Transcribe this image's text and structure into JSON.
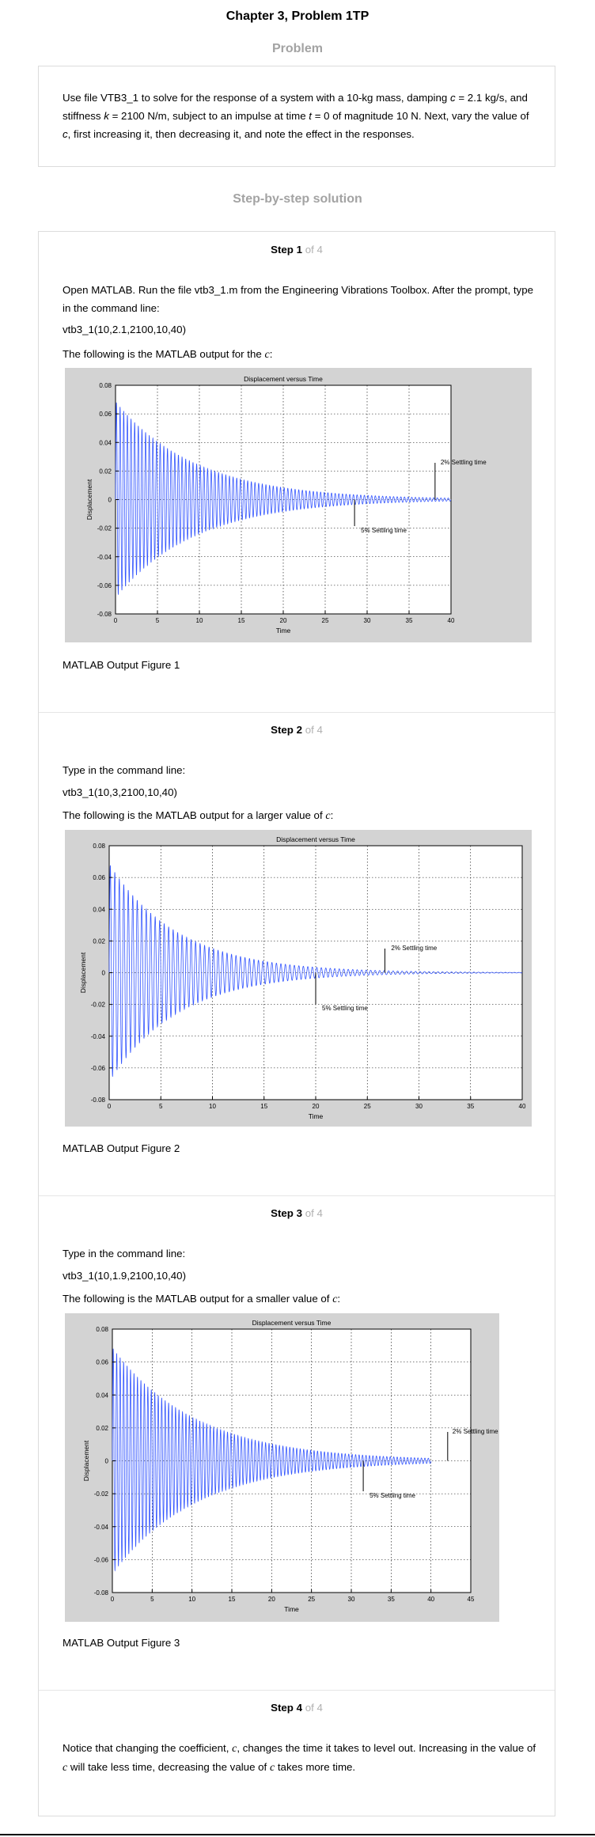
{
  "header": {
    "title": "Chapter 3, Problem 1TP",
    "problem_label": "Problem",
    "solution_label": "Step-by-step solution"
  },
  "problem": {
    "text_parts": [
      "Use file VTB3_1 to solve for the response of a system with a 10-kg mass, damping ",
      "c",
      " = 2.1 kg/s, and stiffness ",
      "k",
      " = 2100 N/m, subject to an impulse at time ",
      "t",
      " = 0 of magnitude 10 N. Next, vary the value of ",
      "c",
      ", first increasing it, then decreasing it, and note the effect in the responses."
    ]
  },
  "steps": [
    {
      "step_label": "Step 1",
      "of_label": " of 4",
      "intro": "Open MATLAB. Run the file vtb3_1.m from the Engineering Vibrations Toolbox. After the prompt, type in the command line:",
      "command": "vtb3_1(10,2.1,2100,10,40)",
      "output_text": "The following is the MATLAB output for the ",
      "output_var": "c",
      "output_end": ":",
      "caption": "MATLAB Output Figure 1"
    },
    {
      "step_label": "Step 2",
      "of_label": " of 4",
      "intro": "Type in the command line:",
      "command": "vtb3_1(10,3,2100,10,40)",
      "output_text": "The following is the MATLAB output for a larger value of ",
      "output_var": "c",
      "output_end": ":",
      "caption": "MATLAB Output Figure 2"
    },
    {
      "step_label": "Step 3",
      "of_label": " of 4",
      "intro": "Type in the command line:",
      "command": "vtb3_1(10,1.9,2100,10,40)",
      "output_text": "The following is the MATLAB output for a smaller value of ",
      "output_var": "c",
      "output_end": ":",
      "caption": "MATLAB Output Figure 3"
    },
    {
      "step_label": "Step 4",
      "of_label": " of 4",
      "conclusion_parts": [
        "Notice that changing the coefficient, ",
        "c",
        ", changes the time it takes to level out. Increasing in the value of ",
        "c",
        " will take less time, decreasing the value of ",
        "c",
        " takes more time."
      ]
    }
  ],
  "chart_data": [
    {
      "type": "line",
      "title": "Displacement versus Time",
      "xlabel": "Time",
      "ylabel": "Displacement",
      "xlim": [
        0,
        40
      ],
      "ylim": [
        -0.08,
        0.08
      ],
      "x_ticks": [
        "0",
        "5",
        "10",
        "15",
        "20",
        "25",
        "30",
        "35",
        "40"
      ],
      "y_ticks": [
        "0.08",
        "0.06",
        "0.04",
        "0.02",
        "0",
        "-0.02",
        "-0.04",
        "-0.06",
        "-0.08"
      ],
      "grid": true,
      "series": [
        {
          "amplitude_initial": 0.0687,
          "decay_rate": 0.105,
          "frequency_hz": 2.3,
          "duration": 40
        }
      ],
      "annotations": [
        {
          "label": "2% Settling time",
          "time": 38.1
        },
        {
          "label": "5% Settling time",
          "time": 28.5
        }
      ],
      "line_color": "#3355ff"
    },
    {
      "type": "line",
      "title": "Displacement versus Time",
      "xlabel": "Time",
      "ylabel": "Displacement",
      "xlim": [
        0,
        40
      ],
      "ylim": [
        -0.08,
        0.08
      ],
      "x_ticks": [
        "0",
        "5",
        "10",
        "15",
        "20",
        "25",
        "30",
        "35",
        "40"
      ],
      "y_ticks": [
        "0.08",
        "0.06",
        "0.04",
        "0.02",
        "0",
        "-0.02",
        "-0.04",
        "-0.06",
        "-0.08"
      ],
      "grid": true,
      "series": [
        {
          "amplitude_initial": 0.0687,
          "decay_rate": 0.15,
          "frequency_hz": 2.3,
          "duration": 40
        }
      ],
      "annotations": [
        {
          "label": "2% Settling time",
          "time": 26.7
        },
        {
          "label": "5% Settling time",
          "time": 20.0
        }
      ],
      "line_color": "#3355ff"
    },
    {
      "type": "line",
      "title": "Displacement versus Time",
      "xlabel": "Time",
      "ylabel": "Displacement",
      "xlim": [
        0,
        45
      ],
      "ylim": [
        -0.08,
        0.08
      ],
      "x_ticks": [
        "0",
        "5",
        "10",
        "15",
        "20",
        "25",
        "30",
        "35",
        "40",
        "45"
      ],
      "y_ticks": [
        "0.08",
        "0.06",
        "0.04",
        "0.02",
        "0",
        "-0.02",
        "-0.04",
        "-0.06",
        "-0.08"
      ],
      "grid": true,
      "series": [
        {
          "amplitude_initial": 0.0688,
          "decay_rate": 0.095,
          "frequency_hz": 2.3,
          "duration": 40
        }
      ],
      "annotations": [
        {
          "label": "2% Settling time",
          "time": 42.1
        },
        {
          "label": "5% Settling time",
          "time": 31.5
        }
      ],
      "line_color": "#3355ff"
    }
  ]
}
